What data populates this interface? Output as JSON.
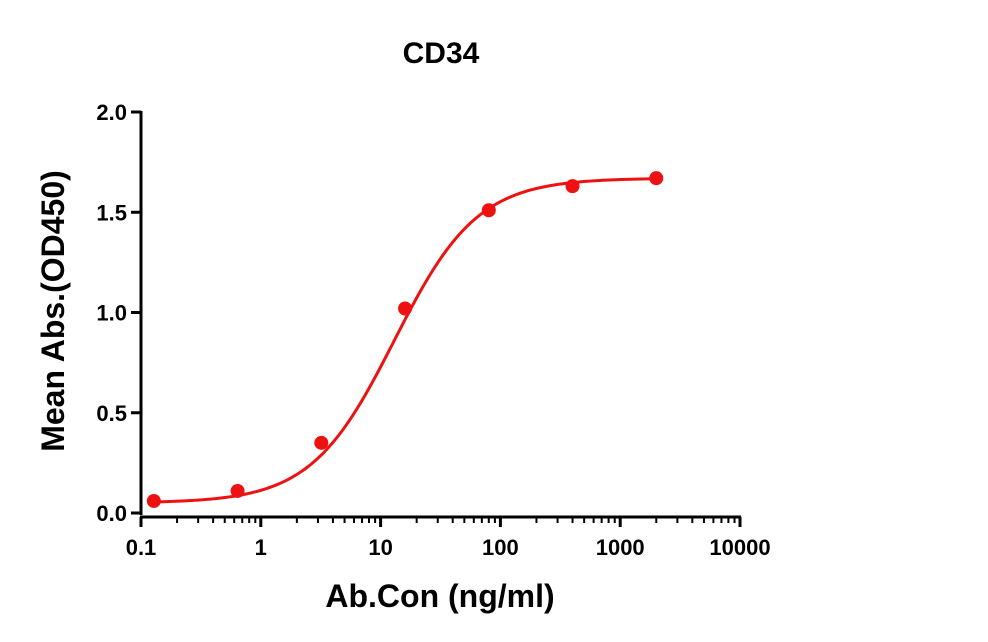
{
  "chart_data": {
    "type": "scatter",
    "title": "CD34",
    "xlabel": "Ab.Con (ng/ml)",
    "ylabel": "Mean Abs.(OD450)",
    "x_scale": "log",
    "xlim": [
      0.1,
      10000
    ],
    "ylim": [
      0,
      2.0
    ],
    "x_ticks": [
      0.1,
      1,
      10,
      100,
      1000,
      10000
    ],
    "x_tick_labels": [
      "0.1",
      "1",
      "10",
      "100",
      "1000",
      "10000"
    ],
    "y_ticks": [
      0,
      0.5,
      1.0,
      1.5,
      2.0
    ],
    "y_tick_labels": [
      "0.0",
      "0.5",
      "1.0",
      "1.5",
      "2.0"
    ],
    "grid": false,
    "series": [
      {
        "color": "#ee1111",
        "x": [
          0.128,
          0.64,
          3.2,
          16,
          80,
          400,
          2000
        ],
        "y": [
          0.06,
          0.11,
          0.35,
          1.02,
          1.51,
          1.63,
          1.67
        ],
        "fit": "4PL",
        "fit_params": {
          "bottom": 0.05,
          "top": 1.67,
          "ec50": 13,
          "hill": 1.25
        }
      }
    ]
  }
}
